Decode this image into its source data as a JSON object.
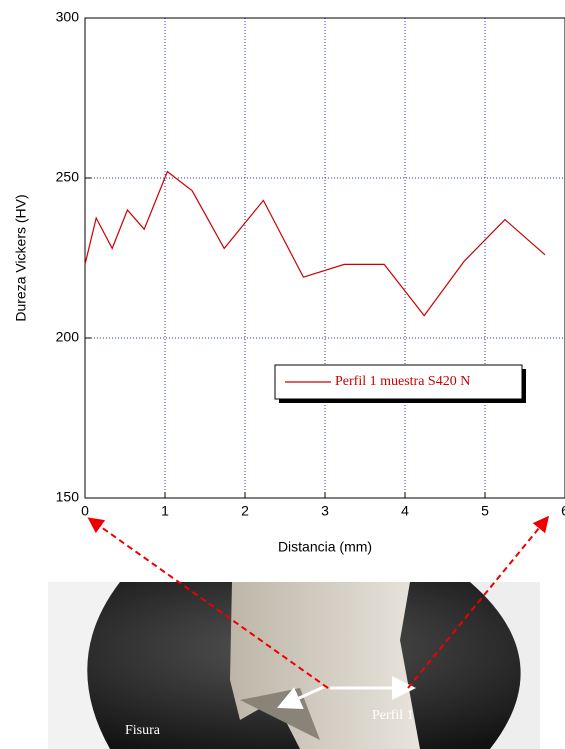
{
  "chart_data": {
    "type": "line",
    "x_label": "Distancia (mm)",
    "y_label": "Dureza Vickers (HV)",
    "xlim": [
      0,
      6
    ],
    "ylim": [
      150,
      300
    ],
    "xticks": [
      0,
      1,
      2,
      3,
      4,
      5,
      6
    ],
    "yticks": [
      150,
      200,
      250,
      300
    ],
    "grid": true,
    "legend": "right",
    "series": [
      {
        "name": "Perfil 1 muestra S420 N",
        "color": "#cc0000",
        "x": [
          0,
          0.14,
          0.34,
          0.53,
          0.74,
          1.03,
          1.34,
          1.74,
          2.23,
          2.73,
          3.24,
          3.74,
          4.24,
          4.74,
          5.25,
          5.75
        ],
        "values": [
          223,
          237.5,
          228,
          240,
          234,
          252,
          246,
          228,
          243,
          219,
          223,
          223,
          207,
          224,
          237,
          226
        ]
      }
    ],
    "annotations": [
      "Fisura",
      "Perfil 1"
    ]
  }
}
